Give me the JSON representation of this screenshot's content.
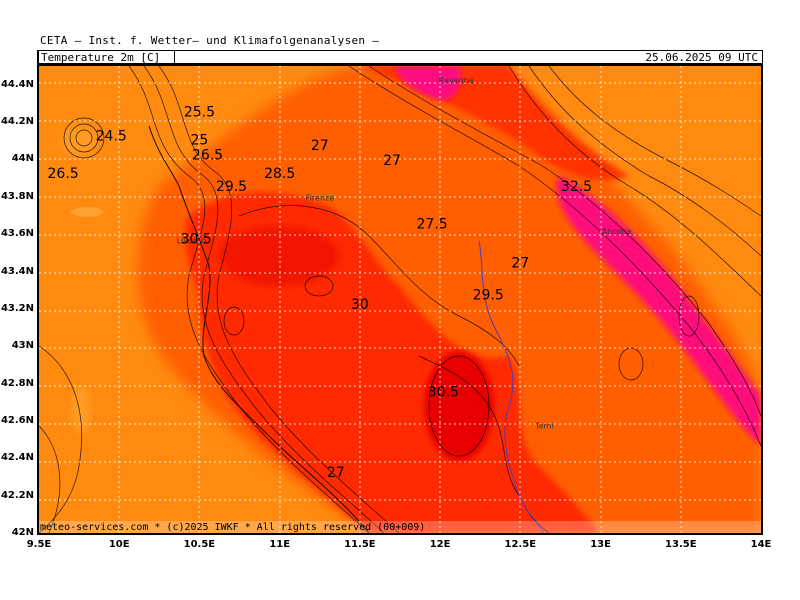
{
  "header": {
    "institute": "CETA — Inst. f. Wetter— und Klimafolgenanalysen —",
    "variable": "Temperature_2m_[C]",
    "valid_time": "25.06.2025 09 UTC"
  },
  "footer": {
    "credit": "meteo-services.com * (c)2025 IWKF * All rights reserved (00+009)"
  },
  "axes": {
    "lon_ticks": [
      "9.5E",
      "10E",
      "10.5E",
      "11E",
      "11.5E",
      "12E",
      "12.5E",
      "13E",
      "13.5E",
      "14E"
    ],
    "lat_ticks": [
      "44.4N",
      "44.2N",
      "44N",
      "43.8N",
      "43.6N",
      "43.4N",
      "43.2N",
      "43N",
      "42.8N",
      "42.6N",
      "42.4N",
      "42.2N",
      "42N"
    ]
  },
  "map": {
    "lon_range": [
      9.5,
      14.0
    ],
    "lat_range": [
      42.0,
      44.5
    ],
    "grid": "dotted-white",
    "colors": {
      "warm_orange": "#ff8000",
      "orange_red": "#ff5a00",
      "red": "#ff2800",
      "dark_red": "#e00000",
      "magenta": "#ff0090"
    },
    "cities": [
      {
        "name": "Ravenna",
        "lon": 12.1,
        "lat": 44.41
      },
      {
        "name": "Firenze",
        "lon": 11.25,
        "lat": 43.78
      },
      {
        "name": "Ancona",
        "lon": 13.1,
        "lat": 43.6
      },
      {
        "name": "Livorno",
        "lon": 10.45,
        "lat": 43.55
      },
      {
        "name": "Terni",
        "lon": 12.65,
        "lat": 42.56
      }
    ],
    "contour_labels": [
      {
        "text": "25.5",
        "lon": 10.5,
        "lat": 44.23
      },
      {
        "text": "24.5",
        "lon": 9.95,
        "lat": 44.1
      },
      {
        "text": "25",
        "lon": 10.5,
        "lat": 44.08
      },
      {
        "text": "26.5",
        "lon": 10.55,
        "lat": 44.0
      },
      {
        "text": "27",
        "lon": 11.25,
        "lat": 44.05
      },
      {
        "text": "27",
        "lon": 11.7,
        "lat": 43.97
      },
      {
        "text": "26.5",
        "lon": 9.65,
        "lat": 43.9
      },
      {
        "text": "28.5",
        "lon": 11.0,
        "lat": 43.9
      },
      {
        "text": "29.5",
        "lon": 10.7,
        "lat": 43.83
      },
      {
        "text": "32.5",
        "lon": 12.85,
        "lat": 43.83
      },
      {
        "text": "27.5",
        "lon": 11.95,
        "lat": 43.63
      },
      {
        "text": "30.5",
        "lon": 10.48,
        "lat": 43.55
      },
      {
        "text": "27",
        "lon": 12.5,
        "lat": 43.42
      },
      {
        "text": "29.5",
        "lon": 12.3,
        "lat": 43.25
      },
      {
        "text": "30",
        "lon": 11.5,
        "lat": 43.2
      },
      {
        "text": "30.5",
        "lon": 12.02,
        "lat": 42.73
      },
      {
        "text": "27",
        "lon": 11.35,
        "lat": 42.3
      }
    ]
  }
}
